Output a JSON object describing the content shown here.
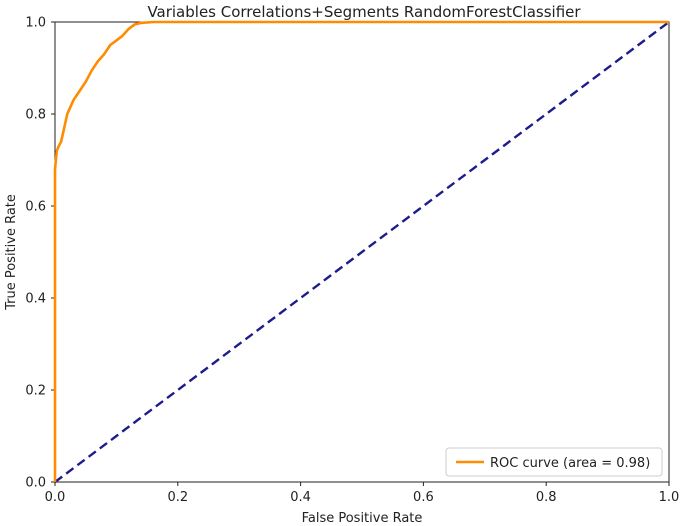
{
  "chart_data": {
    "type": "line",
    "title": "Variables Correlations+Segments RandomForestClassifier",
    "xlabel": "False Positive Rate",
    "ylabel": "True Positive Rate",
    "xlim": [
      0.0,
      1.0
    ],
    "ylim": [
      0.0,
      1.0
    ],
    "xticks": [
      0.0,
      0.2,
      0.4,
      0.6,
      0.8,
      1.0
    ],
    "yticks": [
      0.0,
      0.2,
      0.4,
      0.6,
      0.8,
      1.0
    ],
    "xtick_labels": [
      "0.0",
      "0.2",
      "0.4",
      "0.6",
      "0.8",
      "1.0"
    ],
    "ytick_labels": [
      "0.0",
      "0.2",
      "0.4",
      "0.6",
      "0.8",
      "1.0"
    ],
    "grid": false,
    "legend": {
      "placement": "bottom-right",
      "entries": [
        {
          "label": "ROC curve (area = 0.98)",
          "color": "#ff8c00"
        }
      ]
    },
    "series": [
      {
        "name": "ROC curve (area = 0.98)",
        "color": "#ff8c00",
        "style": "solid",
        "x": [
          0.0,
          0.0,
          0.003,
          0.006,
          0.01,
          0.015,
          0.02,
          0.03,
          0.04,
          0.05,
          0.06,
          0.07,
          0.08,
          0.09,
          0.1,
          0.11,
          0.12,
          0.13,
          0.14,
          0.16,
          0.18,
          0.3,
          0.5,
          0.7,
          0.9,
          1.0
        ],
        "y": [
          0.0,
          0.68,
          0.72,
          0.73,
          0.74,
          0.77,
          0.8,
          0.83,
          0.85,
          0.87,
          0.895,
          0.915,
          0.93,
          0.95,
          0.96,
          0.97,
          0.985,
          0.995,
          0.998,
          1.0,
          1.0,
          1.0,
          1.0,
          1.0,
          1.0,
          1.0
        ]
      },
      {
        "name": "",
        "color": "#1c1c8c",
        "style": "dashed",
        "x": [
          0.0,
          1.0
        ],
        "y": [
          0.0,
          1.0
        ]
      }
    ]
  }
}
